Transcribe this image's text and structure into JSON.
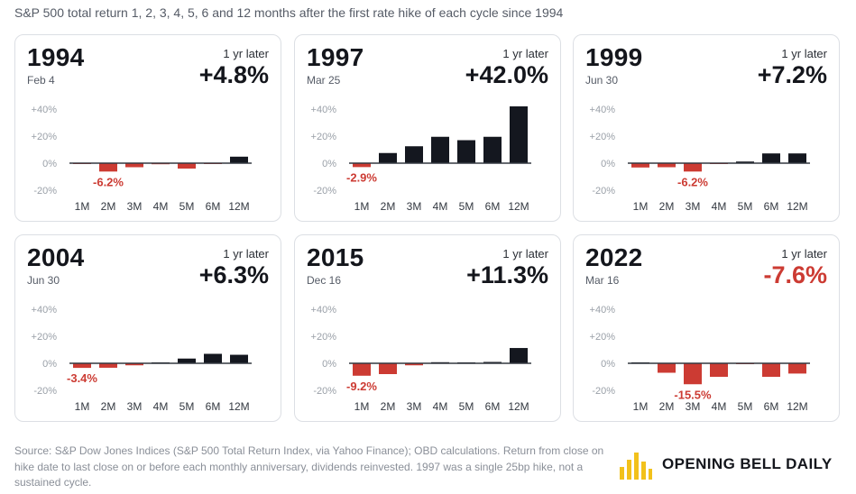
{
  "subtitle": "S&P 500 total return 1, 2, 3, 4, 5, 6 and 12 months after the first rate hike of each cycle since 1994",
  "later_label": "1 yr later",
  "colors": {
    "positive": "#14171f",
    "negative": "#cc3b33",
    "axis": "#333840",
    "tick": "#9aa0a8",
    "brand": "#f2c11b"
  },
  "chart_data": [
    {
      "type": "bar",
      "title": "1994",
      "date": "Feb 4",
      "one_year_later": "+4.8%",
      "categories": [
        "1M",
        "2M",
        "3M",
        "4M",
        "5M",
        "6M",
        "12M"
      ],
      "values": [
        -0.5,
        -6.2,
        -3.0,
        -0.8,
        -4.0,
        -0.6,
        4.8
      ],
      "min_label": "-6.2%",
      "yticks": [
        "+40%",
        "+20%",
        "0%",
        "-20%"
      ],
      "ylim": [
        -20,
        40
      ]
    },
    {
      "type": "bar",
      "title": "1997",
      "date": "Mar 25",
      "one_year_later": "+42.0%",
      "categories": [
        "1M",
        "2M",
        "3M",
        "4M",
        "5M",
        "6M",
        "12M"
      ],
      "values": [
        -2.9,
        7.5,
        12.5,
        19.5,
        17.0,
        19.5,
        42.0
      ],
      "min_label": "-2.9%",
      "yticks": [
        "+40%",
        "+20%",
        "0%",
        "-20%"
      ],
      "ylim": [
        -20,
        40
      ]
    },
    {
      "type": "bar",
      "title": "1999",
      "date": "Jun 30",
      "one_year_later": "+7.2%",
      "categories": [
        "1M",
        "2M",
        "3M",
        "4M",
        "5M",
        "6M",
        "12M"
      ],
      "values": [
        -3.2,
        -3.0,
        -6.2,
        -0.3,
        1.2,
        7.2,
        7.2
      ],
      "min_label": "-6.2%",
      "yticks": [
        "+40%",
        "+20%",
        "0%",
        "-20%"
      ],
      "ylim": [
        -20,
        40
      ]
    },
    {
      "type": "bar",
      "title": "2004",
      "date": "Jun 30",
      "one_year_later": "+6.3%",
      "categories": [
        "1M",
        "2M",
        "3M",
        "4M",
        "5M",
        "6M",
        "12M"
      ],
      "values": [
        -3.4,
        -3.3,
        -1.5,
        0.2,
        3.5,
        7.0,
        6.3
      ],
      "min_label": "-3.4%",
      "yticks": [
        "+40%",
        "+20%",
        "0%",
        "-20%"
      ],
      "ylim": [
        -20,
        40
      ]
    },
    {
      "type": "bar",
      "title": "2015",
      "date": "Dec 16",
      "one_year_later": "+11.3%",
      "categories": [
        "1M",
        "2M",
        "3M",
        "4M",
        "5M",
        "6M",
        "12M"
      ],
      "values": [
        -9.2,
        -8.0,
        -1.5,
        0.8,
        0.3,
        1.0,
        11.3
      ],
      "min_label": "-9.2%",
      "yticks": [
        "+40%",
        "+20%",
        "0%",
        "-20%"
      ],
      "ylim": [
        -20,
        40
      ]
    },
    {
      "type": "bar",
      "title": "2022",
      "date": "Mar 16",
      "one_year_later": "-7.6%",
      "categories": [
        "1M",
        "2M",
        "3M",
        "4M",
        "5M",
        "6M",
        "12M"
      ],
      "values": [
        0.5,
        -7.0,
        -15.5,
        -10.0,
        -0.3,
        -10.0,
        -7.6
      ],
      "min_label": "-15.5%",
      "yticks": [
        "+40%",
        "+20%",
        "0%",
        "-20%"
      ],
      "ylim": [
        -20,
        40
      ]
    }
  ],
  "source": "Source: S&P Dow Jones Indices (S&P 500 Total Return Index, via Yahoo Finance); OBD calculations. Return from close on hike date to last close on or before each monthly anniversary, dividends reinvested. 1997 was a single 25bp hike, not a sustained cycle.",
  "brand": "OPENING BELL DAILY"
}
